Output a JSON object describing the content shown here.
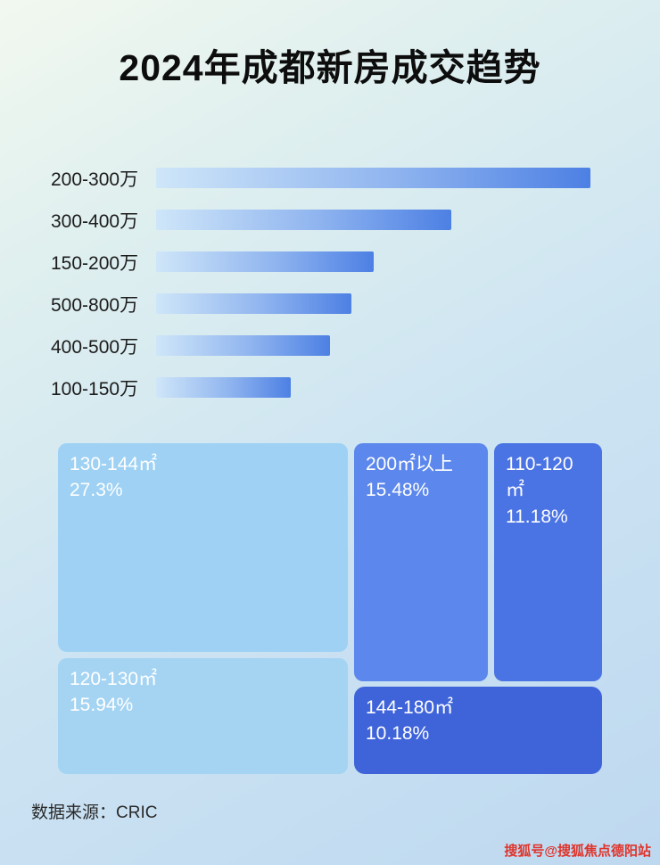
{
  "title": "2024年成都新房成交趋势",
  "footer": {
    "source": "数据来源：CRIC"
  },
  "watermark": "搜狐号@搜狐焦点德阳站",
  "colors": {
    "bar_gradient_start": "#cfe6f9",
    "bar_gradient_end": "#4d80e4",
    "tile_light_large": "#9ed1f3",
    "tile_light_small": "#a5d4f3",
    "tile_mid_blue": "#5c87ec",
    "tile_dark_blue": "#4a73e4",
    "tile_darkest_blue": "#3f64da",
    "watermark_red": "#e0342b",
    "title_text": "#0d0d0d"
  },
  "chart_data": [
    {
      "type": "bar",
      "orientation": "horizontal",
      "title": "2024年成都新房成交趋势",
      "categories": [
        "200-300万",
        "300-400万",
        "150-200万",
        "500-800万",
        "400-500万",
        "100-150万"
      ],
      "values_relative_pct": [
        100,
        68,
        50,
        45,
        40,
        31
      ],
      "xlabel": "",
      "ylabel": "",
      "grid": false,
      "legend": false
    },
    {
      "type": "treemap",
      "items": [
        {
          "label": "130-144㎡",
          "value": 27.3,
          "display": "27.3%"
        },
        {
          "label": "200㎡以上",
          "value": 15.48,
          "display": "15.48%"
        },
        {
          "label": "110-120㎡",
          "value": 11.18,
          "display": "11.18%"
        },
        {
          "label": "120-130㎡",
          "value": 15.94,
          "display": "15.94%"
        },
        {
          "label": "144-180㎡",
          "value": 10.18,
          "display": "10.18%"
        }
      ]
    }
  ]
}
